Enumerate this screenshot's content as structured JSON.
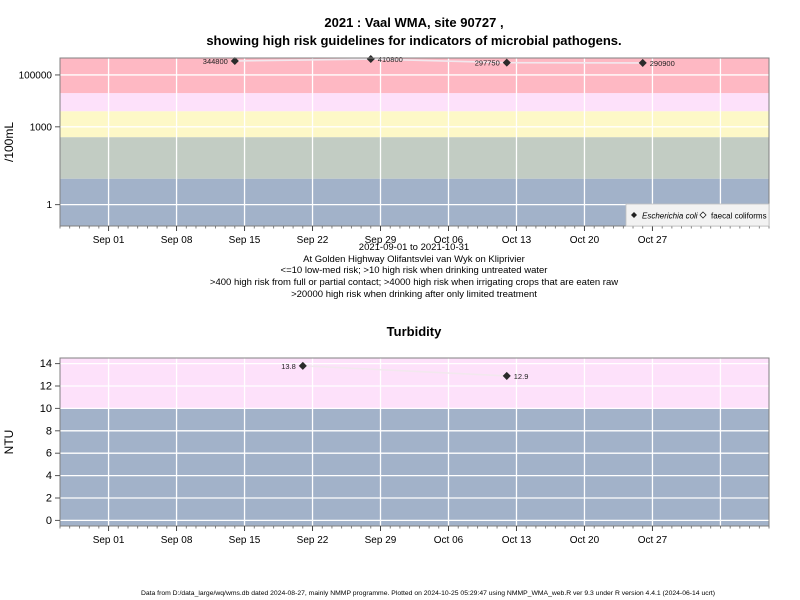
{
  "chart_data": [
    {
      "type": "scatter",
      "title_line1": "2021 : Vaal WMA, site 90727 ,",
      "title_line2": "showing high risk guidelines for indicators of microbial pathogens.",
      "ylabel": "/100mL",
      "yscale": "log10",
      "ylim": [
        0.15,
        450000
      ],
      "yticks": [
        1,
        1000,
        100000
      ],
      "ytick_labels": [
        "1",
        "1000",
        "100000"
      ],
      "x_range": [
        "2021-08-27",
        "2021-11-08"
      ],
      "xticks": [
        "2021-09-01",
        "2021-09-08",
        "2021-09-15",
        "2021-09-22",
        "2021-09-29",
        "2021-10-06",
        "2021-10-13",
        "2021-10-20",
        "2021-10-27"
      ],
      "xtick_labels": [
        "Sep 01",
        "Sep 08",
        "Sep 15",
        "Sep 22",
        "Sep 29",
        "Oct 06",
        "Oct 13",
        "Oct 20",
        "Oct 27"
      ],
      "grid": true,
      "bands": [
        {
          "from": 0.15,
          "to": 10,
          "color": "#a2b2c9"
        },
        {
          "from": 10,
          "to": 400,
          "color": "#c2ccc3"
        },
        {
          "from": 400,
          "to": 4000,
          "color": "#fdf8c7"
        },
        {
          "from": 4000,
          "to": 20000,
          "color": "#fde1fa"
        },
        {
          "from": 20000,
          "to": 450000,
          "color": "#feb8c3"
        }
      ],
      "series": [
        {
          "name": "Escherichia coli",
          "marker": "filled-diamond",
          "color": "#222222",
          "points": [
            {
              "x": "2021-09-14",
              "y": 344800,
              "label": "344800",
              "label_side": "left"
            },
            {
              "x": "2021-09-28",
              "y": 410800,
              "label": "410800",
              "label_side": "right"
            },
            {
              "x": "2021-10-12",
              "y": 297750,
              "label": "297750",
              "label_side": "left"
            },
            {
              "x": "2021-10-26",
              "y": 290900,
              "label": "290900",
              "label_side": "right"
            }
          ]
        },
        {
          "name": "faecal coliforms",
          "marker": "open-diamond",
          "color": "#222222",
          "points": []
        }
      ],
      "legend_position": "bottom-right",
      "subtitle_lines": [
        "2021-09-01 to 2021-10-31",
        "At Golden Highway Olifantsvlei van Wyk on Kliprivier",
        "<=10 low-med risk; >10 high risk when drinking untreated water",
        ">400 high risk from full or partial contact; >4000 high risk when irrigating crops that are eaten raw",
        ">20000 high risk when drinking after only limited treatment"
      ]
    },
    {
      "type": "scatter",
      "title": "Turbidity",
      "ylabel": "NTU",
      "ylim": [
        -0.5,
        14.5
      ],
      "yticks": [
        0,
        2,
        4,
        6,
        8,
        10,
        12,
        14
      ],
      "ytick_labels": [
        "0",
        "2",
        "4",
        "6",
        "8",
        "10",
        "12",
        "14"
      ],
      "x_range": [
        "2021-08-27",
        "2021-11-08"
      ],
      "xticks": [
        "2021-09-01",
        "2021-09-08",
        "2021-09-15",
        "2021-09-22",
        "2021-09-29",
        "2021-10-06",
        "2021-10-13",
        "2021-10-20",
        "2021-10-27"
      ],
      "xtick_labels": [
        "Sep 01",
        "Sep 08",
        "Sep 15",
        "Sep 22",
        "Sep 29",
        "Oct 06",
        "Oct 13",
        "Oct 20",
        "Oct 27"
      ],
      "grid": true,
      "bands": [
        {
          "from": -0.5,
          "to": 10,
          "color": "#a2b2c9"
        },
        {
          "from": 10,
          "to": 14.5,
          "color": "#fde1fa"
        }
      ],
      "series": [
        {
          "marker": "filled-diamond",
          "color": "#222222",
          "points": [
            {
              "x": "2021-09-21",
              "y": 13.8,
              "label": "13.8",
              "label_side": "left"
            },
            {
              "x": "2021-10-12",
              "y": 12.9,
              "label": "12.9",
              "label_side": "right"
            }
          ]
        }
      ]
    }
  ],
  "footer": "Data from D:/data_large/wq/wms.db dated 2024-08-27, mainly NMMP programme. Plotted on 2024-10-25 05:29:47 using NMMP_WMA_web.R ver 9.3 under R version 4.4.1 (2024-06-14 ucrt)"
}
